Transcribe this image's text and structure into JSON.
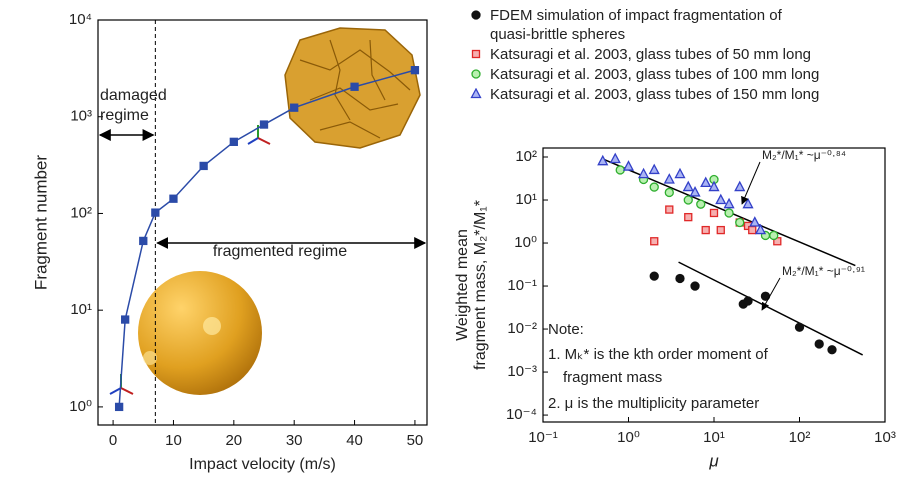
{
  "chart_data": [
    {
      "type": "line",
      "xlabel": "Impact velocity (m/s)",
      "ylabel": "Fragment number",
      "x": [
        1,
        2,
        5,
        7,
        10,
        15,
        20,
        25,
        30,
        40,
        50
      ],
      "series": [
        {
          "color": "#2b4ba8",
          "fill": "#2b4ba8",
          "marker": "square",
          "values": [
            1,
            8,
            52,
            102,
            142,
            310,
            550,
            830,
            1240,
            2040,
            3030
          ]
        }
      ],
      "xlim": [
        -2.5,
        52
      ],
      "xticks": [
        0,
        10,
        20,
        30,
        40,
        50
      ],
      "ylim": [
        0.65,
        10000
      ],
      "ylog": true,
      "yticks": [
        {
          "value": 1,
          "label": "10⁰"
        },
        {
          "value": 10,
          "label": "10¹"
        },
        {
          "value": 100,
          "label": "10²"
        },
        {
          "value": 1000,
          "label": "10³"
        },
        {
          "value": 10000,
          "label": "10⁴"
        }
      ],
      "vline": 7,
      "annotations": [
        "damaged",
        "regime",
        "fragmented regime"
      ]
    },
    {
      "type": "scatter",
      "xlabel": "μ",
      "ylabel": [
        "Weighted mean",
        "fragment mass, M₂*/M₁*"
      ],
      "xlog": true,
      "ylog": true,
      "xlim": [
        0.1,
        1000
      ],
      "xticks": [
        {
          "value": 0.1,
          "label": "10⁻¹"
        },
        {
          "value": 1,
          "label": "10⁰"
        },
        {
          "value": 10,
          "label": "10¹"
        },
        {
          "value": 100,
          "label": "10²"
        },
        {
          "value": 1000,
          "label": "10³"
        }
      ],
      "ylim": [
        6.9e-05,
        162
      ],
      "yticks": [
        {
          "value": 0.0001,
          "label": "10⁻⁴"
        },
        {
          "value": 0.001,
          "label": "10⁻³"
        },
        {
          "value": 0.01,
          "label": "10⁻²"
        },
        {
          "value": 0.1,
          "label": "10⁻¹"
        },
        {
          "value": 1,
          "label": "10⁰"
        },
        {
          "value": 10,
          "label": "10¹"
        },
        {
          "value": 100,
          "label": "10²"
        }
      ],
      "series": [
        {
          "name": "FDEM simulation of impact fragmentation of  quasi-brittle spheres",
          "color": "#111111",
          "fill": "#111111",
          "marker": "circle",
          "x": [
            2,
            4,
            6,
            22,
            25,
            40,
            100,
            170,
            240
          ],
          "values": [
            0.17,
            0.15,
            0.1,
            0.038,
            0.045,
            0.058,
            0.011,
            0.0045,
            0.0033
          ]
        },
        {
          "name": "Katsuragi et al. 2003, glass tubes of 50 mm long",
          "color": "#e02828",
          "fill": "#f6b0b0",
          "marker": "square",
          "x": [
            2,
            3,
            5,
            8,
            10,
            12,
            20,
            25,
            28,
            55
          ],
          "values": [
            1.1,
            6,
            4,
            2,
            5,
            2,
            3,
            2.5,
            2,
            1.1
          ]
        },
        {
          "name": "Katsuragi et al. 2003, glass tubes of 100 mm long",
          "color": "#2fae2f",
          "fill": "#b9f0b0",
          "marker": "circle",
          "x": [
            0.8,
            1.5,
            2,
            3,
            5,
            7,
            10,
            15,
            20,
            40,
            50
          ],
          "values": [
            50,
            30,
            20,
            15,
            10,
            8,
            30,
            5,
            3,
            1.5,
            1.5
          ]
        },
        {
          "name": "Katsuragi et al. 2003, glass tubes of 150 mm long",
          "color": "#3340c8",
          "fill": "#aab4f4",
          "marker": "triangle",
          "x": [
            0.5,
            0.7,
            1,
            1.5,
            2,
            3,
            4,
            5,
            6,
            8,
            10,
            12,
            15,
            20,
            25,
            30,
            35
          ],
          "values": [
            80,
            90,
            60,
            40,
            50,
            30,
            40,
            20,
            15,
            25,
            20,
            10,
            8,
            20,
            8,
            3,
            2
          ]
        }
      ],
      "fit_lines": [
        {
          "color": "#000000",
          "x": [
            0.5,
            450
          ],
          "values": [
            90,
            0.3
          ]
        },
        {
          "color": "#000000",
          "x": [
            3.85,
            548
          ],
          "values": [
            0.36,
            0.0025
          ]
        }
      ],
      "annotations": [
        "M₂*/M₁* ~μ⁻⁰·⁸⁴",
        "M₂*/M₁* ~μ⁻⁰·⁹¹",
        "Note:",
        "1. Mₖ* is the kth order moment of",
        "fragment mass",
        "2. μ is the multiplicity parameter"
      ]
    }
  ]
}
